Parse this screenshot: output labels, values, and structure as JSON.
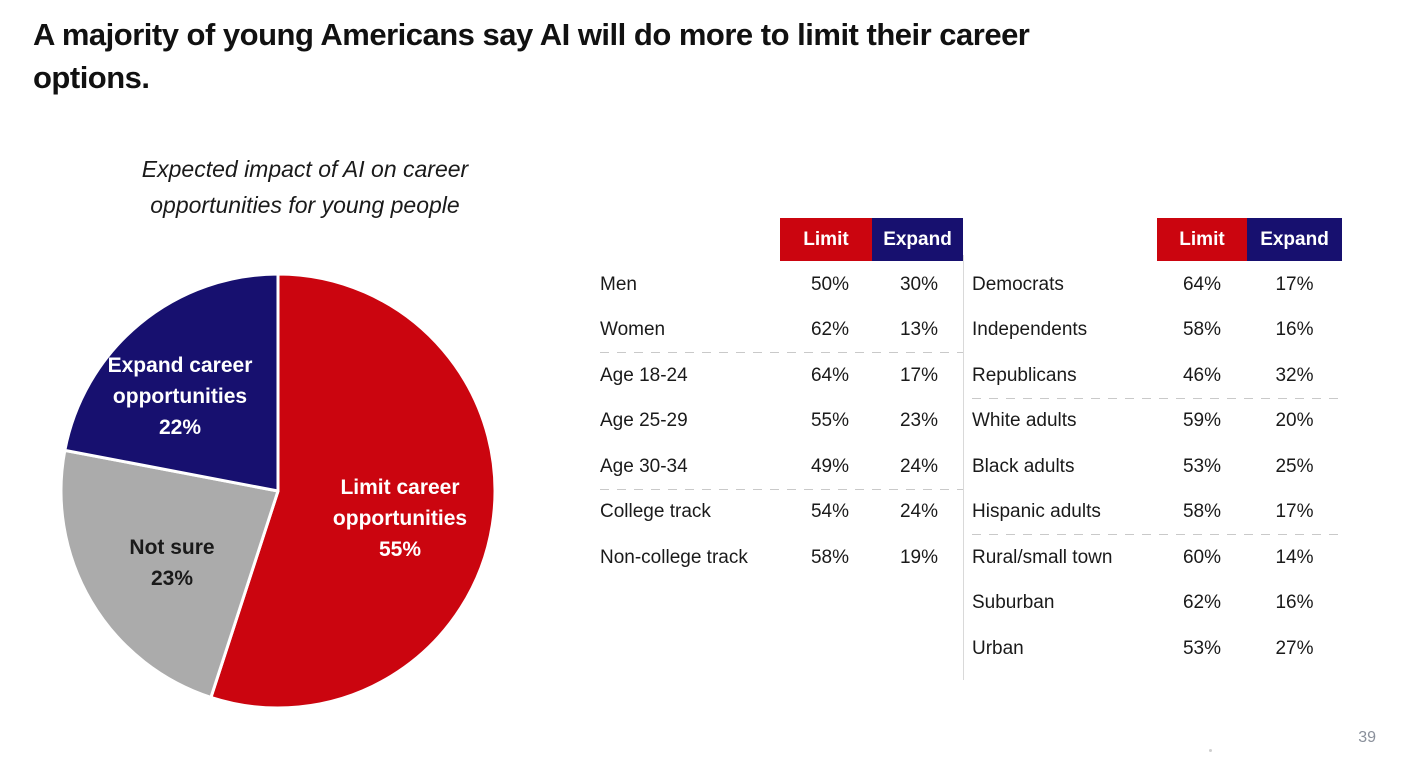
{
  "slide": {
    "title_lines": [
      "A majority of young Americans say AI will do more to limit their career",
      "options."
    ],
    "page_number": "39",
    "footer_dot": "."
  },
  "colors": {
    "limit_red": "#CB050F",
    "expand_navy": "#17106F",
    "not_sure_gray": "#ABABAB",
    "divider_gray": "#D9D9D9",
    "dash_gray": "#C9C9C9"
  },
  "chart_data": [
    {
      "type": "pie",
      "title_lines": [
        "Expected impact of AI on career",
        "opportunities for young people"
      ],
      "start_angle": "top",
      "direction": "clockwise",
      "slices": [
        {
          "id": "limit",
          "label": "Limit career opportunities",
          "value": 55,
          "display": "55%",
          "color": "#CB050F",
          "text_color": "#FFFFFF",
          "label_lines": [
            "Limit career",
            "opportunities",
            "55%"
          ]
        },
        {
          "id": "not-sure",
          "label": "Not sure",
          "value": 23,
          "display": "23%",
          "color": "#ABABAB",
          "text_color": "#1A1A1A",
          "label_lines": [
            "Not sure",
            "23%"
          ]
        },
        {
          "id": "expand",
          "label": "Expand career opportunities",
          "value": 22,
          "display": "22%",
          "color": "#17106F",
          "text_color": "#FFFFFF",
          "label_lines": [
            "Expand career",
            "opportunities",
            "22%"
          ]
        }
      ]
    },
    {
      "type": "table",
      "columns": [
        "Limit",
        "Expand"
      ],
      "rows": [
        {
          "label": "Men",
          "limit": "50%",
          "expand": "30%",
          "separator_after": false
        },
        {
          "label": "Women",
          "limit": "62%",
          "expand": "13%",
          "separator_after": true
        },
        {
          "label": "Age 18-24",
          "limit": "64%",
          "expand": "17%",
          "separator_after": false
        },
        {
          "label": "Age 25-29",
          "limit": "55%",
          "expand": "23%",
          "separator_after": false
        },
        {
          "label": "Age 30-34",
          "limit": "49%",
          "expand": "24%",
          "separator_after": true
        },
        {
          "label": "College track",
          "limit": "54%",
          "expand": "24%",
          "separator_after": false
        },
        {
          "label": "Non-college track",
          "limit": "58%",
          "expand": "19%",
          "separator_after": false
        }
      ]
    },
    {
      "type": "table",
      "columns": [
        "Limit",
        "Expand"
      ],
      "rows": [
        {
          "label": "Democrats",
          "limit": "64%",
          "expand": "17%",
          "separator_after": false
        },
        {
          "label": "Independents",
          "limit": "58%",
          "expand": "16%",
          "separator_after": false
        },
        {
          "label": "Republicans",
          "limit": "46%",
          "expand": "32%",
          "separator_after": true
        },
        {
          "label": "White adults",
          "limit": "59%",
          "expand": "20%",
          "separator_after": false
        },
        {
          "label": "Black adults",
          "limit": "53%",
          "expand": "25%",
          "separator_after": false
        },
        {
          "label": "Hispanic adults",
          "limit": "58%",
          "expand": "17%",
          "separator_after": true
        },
        {
          "label": "Rural/small town",
          "limit": "60%",
          "expand": "14%",
          "separator_after": false
        },
        {
          "label": "Suburban",
          "limit": "62%",
          "expand": "16%",
          "separator_after": false
        },
        {
          "label": "Urban",
          "limit": "53%",
          "expand": "27%",
          "separator_after": false
        }
      ]
    }
  ]
}
